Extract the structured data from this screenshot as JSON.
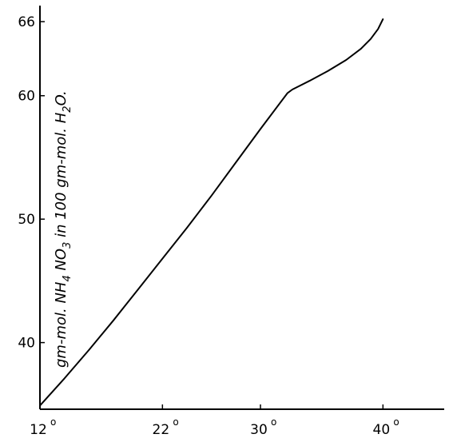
{
  "chart_data": {
    "type": "line",
    "title": "",
    "xlabel": "",
    "ylabel": {
      "p1": "gm-mol. NH",
      "s1": "4",
      "p2": " NO",
      "s2": "3",
      "p3": " in 100 gm-mol. H",
      "s3": "2",
      "p4": "O."
    },
    "x_ticks": [
      {
        "value": 12,
        "label": "12"
      },
      {
        "value": 22,
        "label": "22"
      },
      {
        "value": 30,
        "label": "30"
      },
      {
        "value": 40,
        "label": "40"
      }
    ],
    "x_tick_suffix": "o",
    "y_ticks": [
      {
        "value": 40,
        "label": "40"
      },
      {
        "value": 50,
        "label": "50"
      },
      {
        "value": 60,
        "label": "60"
      },
      {
        "value": 66,
        "label": "66"
      }
    ],
    "xlim": [
      12,
      45
    ],
    "ylim": [
      34.6,
      67.3
    ],
    "grid": false,
    "series": [
      {
        "color": "#000000",
        "points": [
          [
            12.0,
            34.9
          ],
          [
            14.0,
            37.1
          ],
          [
            16.0,
            39.4
          ],
          [
            18.0,
            41.8
          ],
          [
            20.0,
            44.3
          ],
          [
            22.0,
            46.8
          ],
          [
            24.0,
            49.3
          ],
          [
            26.0,
            51.9
          ],
          [
            28.0,
            54.6
          ],
          [
            30.0,
            57.3
          ],
          [
            32.2,
            60.2
          ],
          [
            32.6,
            60.5
          ],
          [
            34.0,
            61.2
          ],
          [
            35.5,
            62.0
          ],
          [
            37.0,
            62.9
          ],
          [
            38.2,
            63.8
          ],
          [
            39.0,
            64.6
          ],
          [
            39.6,
            65.4
          ],
          [
            40.0,
            66.2
          ]
        ]
      }
    ]
  }
}
